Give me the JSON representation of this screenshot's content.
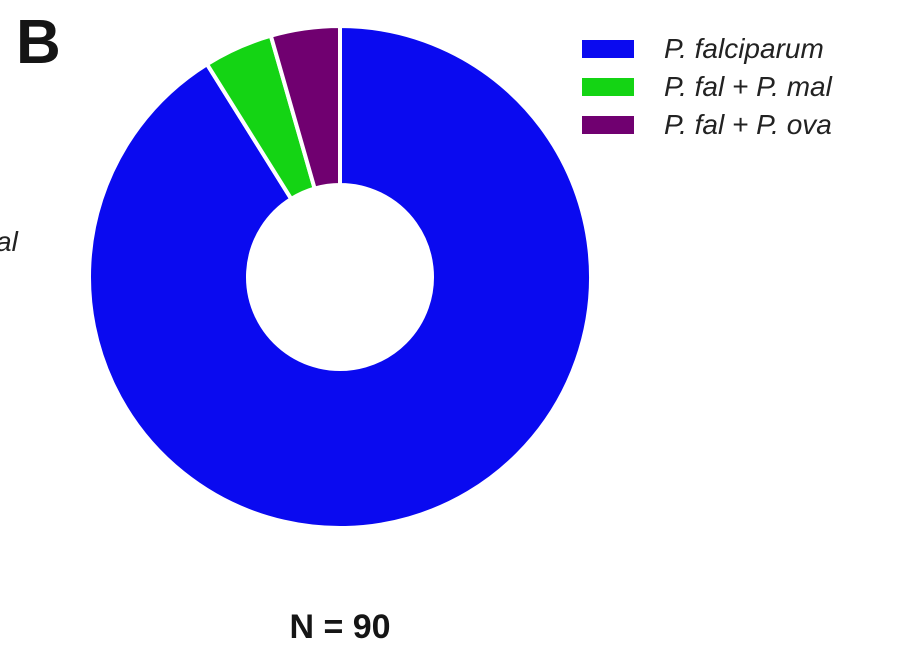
{
  "panel_letter": "B",
  "left_cut_label": "al",
  "n_label": "N = 90",
  "colors": {
    "p_falciparum": "#0a0af0",
    "p_fal_p_mal": "#14d414",
    "p_fal_p_ova": "#700070"
  },
  "chart_data": {
    "type": "pie",
    "subtype": "donut",
    "total": 90,
    "legend_position": "top-right",
    "series": [
      {
        "name": "P. falciparum",
        "value": 82
      },
      {
        "name": "P. fal + P. mal",
        "value": 4
      },
      {
        "name": "P. fal + P. ova",
        "value": 4
      }
    ]
  }
}
